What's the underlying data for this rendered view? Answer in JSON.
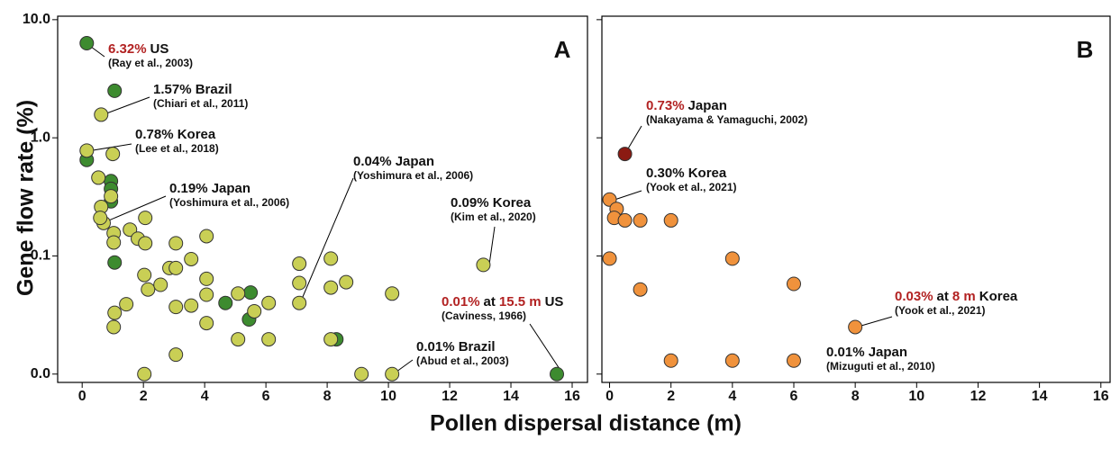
{
  "ylabel": "Gene flow rate (%)",
  "xlabel": "Pollen dispersal distance (m)",
  "highlight_color": "#b22222",
  "chart_data": [
    {
      "type": "scatter",
      "panel": "A",
      "log_y": true,
      "xlim": [
        -0.8,
        16.5
      ],
      "xticks": [
        0,
        2,
        4,
        6,
        8,
        10,
        12,
        14,
        16
      ],
      "ylim": [
        0.0085,
        10.7
      ],
      "yticks": [
        {
          "value": 0.01,
          "label": "0.0"
        },
        {
          "value": 0.1,
          "label": "0.1"
        },
        {
          "value": 1,
          "label": "1.0"
        },
        {
          "value": 10,
          "label": "10.0"
        }
      ],
      "series": [
        {
          "color": "#3d8b2f",
          "x": [
            0.15,
            1.06,
            0.15,
            0.94,
            0.94,
            0.94,
            1.06,
            4.68,
            5.5,
            5.45,
            8.3,
            15.5
          ],
          "values": [
            6.32,
            2.5,
            0.65,
            0.43,
            0.37,
            0.29,
            0.088,
            0.04,
            0.049,
            0.029,
            0.0197,
            0.01
          ]
        },
        {
          "color": "#c9cf55",
          "x": [
            0.62,
            0.15,
            1.0,
            0.53,
            0.62,
            0.94,
            0.7,
            0.59,
            1.03,
            1.03,
            1.56,
            1.82,
            2.06,
            2.06,
            3.06,
            4.06,
            2.03,
            2.15,
            2.56,
            2.85,
            3.06,
            3.56,
            4.06,
            4.06,
            1.06,
            1.44,
            1.03,
            3.06,
            3.56,
            4.06,
            5.09,
            5.62,
            6.09,
            5.09,
            6.09,
            3.06,
            2.03,
            7.09,
            7.09,
            7.09,
            8.12,
            8.12,
            8.62,
            8.12,
            9.12,
            10.12,
            10.12,
            13.1
          ],
          "values": [
            1.57,
            0.78,
            0.73,
            0.46,
            0.26,
            0.32,
            0.19,
            0.21,
            0.156,
            0.13,
            0.167,
            0.14,
            0.21,
            0.128,
            0.128,
            0.147,
            0.069,
            0.052,
            0.057,
            0.079,
            0.079,
            0.094,
            0.064,
            0.047,
            0.033,
            0.039,
            0.025,
            0.037,
            0.038,
            0.027,
            0.048,
            0.034,
            0.04,
            0.0197,
            0.0197,
            0.0146,
            0.01,
            0.086,
            0.059,
            0.04,
            0.095,
            0.054,
            0.06,
            0.0197,
            0.01,
            0.048,
            0.01,
            0.084
          ]
        }
      ],
      "annotations": [
        {
          "parts": [
            {
              "text": "6.32%",
              "highlight": true
            },
            {
              "text": "US"
            }
          ],
          "ref": "(Ray et al., 2003)"
        },
        {
          "parts": [
            {
              "text": "1.57% Brazil"
            }
          ],
          "ref": "(Chiari et al., 2011)"
        },
        {
          "parts": [
            {
              "text": "0.78% Korea"
            }
          ],
          "ref": "(Lee et al., 2018)"
        },
        {
          "parts": [
            {
              "text": "0.19% Japan"
            }
          ],
          "ref": "(Yoshimura et al., 2006)"
        },
        {
          "parts": [
            {
              "text": "0.04% Japan"
            }
          ],
          "ref": "(Yoshimura et al., 2006)"
        },
        {
          "parts": [
            {
              "text": "0.09% Korea"
            }
          ],
          "ref": "(Kim et al., 2020)"
        },
        {
          "parts": [
            {
              "text": "0.01%",
              "highlight": true
            },
            {
              "text": "at"
            },
            {
              "text": "15.5 m",
              "highlight": true
            },
            {
              "text": "US"
            }
          ],
          "ref": "(Caviness, 1966)"
        },
        {
          "parts": [
            {
              "text": "0.01% Brazil"
            }
          ],
          "ref": "(Abud et al., 2003)"
        }
      ]
    },
    {
      "type": "scatter",
      "panel": "B",
      "log_y": true,
      "xlim": [
        -0.25,
        16.3
      ],
      "xticks": [
        0,
        2,
        4,
        6,
        8,
        10,
        12,
        14,
        16
      ],
      "ylim": [
        0.0085,
        10.7
      ],
      "yticks": [
        0.01,
        0.1,
        1,
        10
      ],
      "series": [
        {
          "color": "#8b1a12",
          "x": [
            0.5
          ],
          "values": [
            0.73
          ]
        },
        {
          "color": "#f0923c",
          "x": [
            0,
            0.23,
            0.15,
            0.5,
            1.0,
            2.0,
            0,
            1.0,
            4.0,
            6.0,
            8.0,
            2.0,
            4.0,
            6.0
          ],
          "values": [
            0.3,
            0.25,
            0.21,
            0.2,
            0.2,
            0.2,
            0.095,
            0.052,
            0.095,
            0.058,
            0.025,
            0.013,
            0.013,
            0.013
          ]
        }
      ],
      "annotations": [
        {
          "parts": [
            {
              "text": "0.73%",
              "highlight": true
            },
            {
              "text": "Japan"
            }
          ],
          "ref": "(Nakayama & Yamaguchi, 2002)"
        },
        {
          "parts": [
            {
              "text": "0.30% Korea"
            }
          ],
          "ref": "(Yook et al., 2021)"
        },
        {
          "parts": [
            {
              "text": "0.03%",
              "highlight": true
            },
            {
              "text": "at"
            },
            {
              "text": "8 m",
              "highlight": true
            },
            {
              "text": "Korea"
            }
          ],
          "ref": "(Yook et al., 2021)"
        },
        {
          "parts": [
            {
              "text": "0.01% Japan"
            }
          ],
          "ref": "(Mizuguti et al., 2010)"
        }
      ]
    }
  ]
}
